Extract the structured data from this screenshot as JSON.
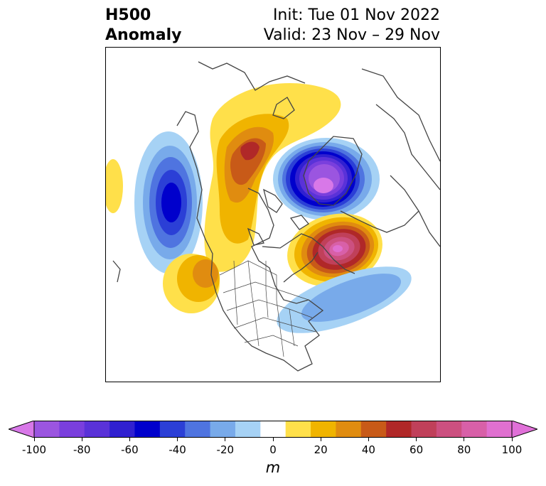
{
  "title": {
    "left_line1": "H500",
    "left_line2": "Anomaly",
    "init": "Init: Tue 01 Nov 2022",
    "valid": "Valid: 23 Nov – 29 Nov"
  },
  "colorbar": {
    "unit": "m",
    "tick_labels": [
      "-100",
      "-80",
      "-60",
      "-40",
      "-20",
      "0",
      "20",
      "40",
      "60",
      "80",
      "100"
    ],
    "tick_values": [
      -100,
      -80,
      -60,
      -40,
      -20,
      0,
      20,
      40,
      60,
      80,
      100
    ],
    "levels": [
      -100,
      -90,
      -80,
      -70,
      -60,
      -50,
      -40,
      -30,
      -20,
      -10,
      10,
      20,
      30,
      40,
      50,
      60,
      70,
      80,
      90,
      100
    ],
    "colors": [
      "#9b55e0",
      "#7a3fdd",
      "#5a32d8",
      "#3020d0",
      "#0000cc",
      "#2b3fd6",
      "#4f74e0",
      "#78aaea",
      "#a6d2f5",
      "#ffffff",
      "#ffe04a",
      "#f0b400",
      "#e08c10",
      "#c85a18",
      "#b02828",
      "#c0405a",
      "#cc5080",
      "#d860a8",
      "#e070d0"
    ],
    "extend_min_color": "#d878e8",
    "extend_max_color": "#e070d8"
  },
  "map": {
    "projection": "polar-stereographic",
    "features": [
      "north-america-borders",
      "us-state-borders",
      "greenland",
      "europe",
      "asia"
    ],
    "anomalies": [
      {
        "label": "negative-greenland-pole",
        "peak": -100
      },
      {
        "label": "negative-northeast-pacific",
        "peak": -60
      },
      {
        "label": "positive-alaska-yukon",
        "peak": 60
      },
      {
        "label": "positive-north-atlantic-europe",
        "peak": 90
      },
      {
        "label": "positive-pacific-northwest",
        "peak": 40
      },
      {
        "label": "negative-western-atlantic",
        "peak": -30
      }
    ]
  }
}
